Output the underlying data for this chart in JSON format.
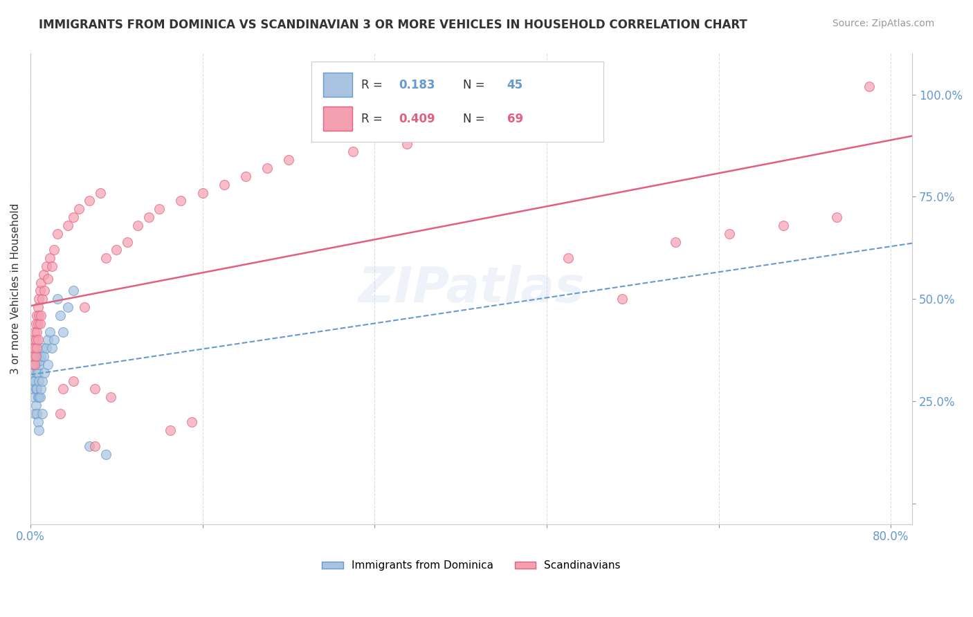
{
  "title": "IMMIGRANTS FROM DOMINICA VS SCANDINAVIAN 3 OR MORE VEHICLES IN HOUSEHOLD CORRELATION CHART",
  "source": "Source: ZipAtlas.com",
  "ylabel": "3 or more Vehicles in Household",
  "watermark": "ZIPatlas",
  "blue_color": "#a8c4e0",
  "blue_edge_color": "#6699cc",
  "pink_color": "#f4a0b0",
  "pink_edge_color": "#e06080",
  "blue_line_color": "#6699cc",
  "pink_line_color": "#e06080",
  "legend_blue_R_val": "0.183",
  "legend_blue_N_val": "45",
  "legend_pink_R_val": "0.409",
  "legend_pink_N_val": "69",
  "legend_label_blue": "Immigrants from Dominica",
  "legend_label_pink": "Scandinavians",
  "blue_x": [
    0.001,
    0.002,
    0.002,
    0.003,
    0.003,
    0.004,
    0.004,
    0.004,
    0.005,
    0.005,
    0.005,
    0.006,
    0.006,
    0.006,
    0.006,
    0.007,
    0.007,
    0.007,
    0.007,
    0.008,
    0.008,
    0.008,
    0.008,
    0.009,
    0.009,
    0.01,
    0.01,
    0.011,
    0.011,
    0.011,
    0.012,
    0.013,
    0.015,
    0.016,
    0.016,
    0.018,
    0.02,
    0.022,
    0.025,
    0.028,
    0.03,
    0.035,
    0.04,
    0.055,
    0.07
  ],
  "blue_y": [
    0.32,
    0.3,
    0.28,
    0.34,
    0.26,
    0.36,
    0.3,
    0.22,
    0.34,
    0.28,
    0.24,
    0.35,
    0.32,
    0.28,
    0.22,
    0.36,
    0.32,
    0.26,
    0.2,
    0.34,
    0.3,
    0.26,
    0.18,
    0.35,
    0.26,
    0.36,
    0.28,
    0.38,
    0.3,
    0.22,
    0.36,
    0.32,
    0.38,
    0.4,
    0.34,
    0.42,
    0.38,
    0.4,
    0.5,
    0.46,
    0.42,
    0.48,
    0.52,
    0.14,
    0.12
  ],
  "pink_x": [
    0.001,
    0.002,
    0.002,
    0.003,
    0.003,
    0.004,
    0.004,
    0.004,
    0.005,
    0.005,
    0.005,
    0.006,
    0.006,
    0.006,
    0.007,
    0.007,
    0.007,
    0.008,
    0.008,
    0.009,
    0.009,
    0.01,
    0.01,
    0.011,
    0.012,
    0.013,
    0.015,
    0.016,
    0.018,
    0.02,
    0.022,
    0.025,
    0.028,
    0.03,
    0.035,
    0.04,
    0.04,
    0.045,
    0.05,
    0.055,
    0.06,
    0.06,
    0.065,
    0.07,
    0.075,
    0.08,
    0.09,
    0.1,
    0.11,
    0.12,
    0.13,
    0.14,
    0.15,
    0.16,
    0.18,
    0.2,
    0.22,
    0.24,
    0.3,
    0.35,
    0.4,
    0.45,
    0.5,
    0.55,
    0.6,
    0.65,
    0.7,
    0.75,
    0.78
  ],
  "pink_y": [
    0.36,
    0.38,
    0.34,
    0.4,
    0.36,
    0.42,
    0.38,
    0.34,
    0.44,
    0.4,
    0.36,
    0.46,
    0.42,
    0.38,
    0.48,
    0.44,
    0.4,
    0.5,
    0.46,
    0.52,
    0.44,
    0.54,
    0.46,
    0.5,
    0.56,
    0.52,
    0.58,
    0.55,
    0.6,
    0.58,
    0.62,
    0.66,
    0.22,
    0.28,
    0.68,
    0.7,
    0.3,
    0.72,
    0.48,
    0.74,
    0.28,
    0.14,
    0.76,
    0.6,
    0.26,
    0.62,
    0.64,
    0.68,
    0.7,
    0.72,
    0.18,
    0.74,
    0.2,
    0.76,
    0.78,
    0.8,
    0.82,
    0.84,
    0.86,
    0.88,
    0.9,
    0.92,
    0.6,
    0.5,
    0.64,
    0.66,
    0.68,
    0.7,
    1.02
  ],
  "grid_color": "#dddddd",
  "title_color": "#333333",
  "axis_label_color": "#333333",
  "tick_color": "#6699cc",
  "marker_size": 10,
  "marker_alpha": 0.7,
  "background_color": "#ffffff"
}
